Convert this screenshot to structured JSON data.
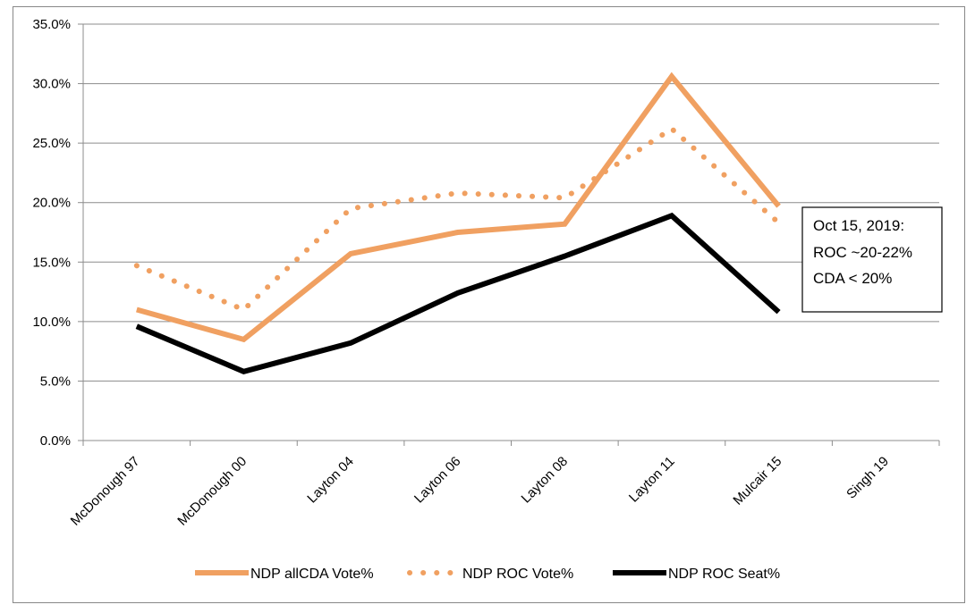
{
  "chart_data": {
    "type": "line",
    "title": "",
    "xlabel": "",
    "ylabel": "",
    "categories": [
      "McDonough 97",
      "McDonough 00",
      "Layton 04",
      "Layton 06",
      "Layton 08",
      "Layton 11",
      "Mulcair 15",
      "Singh 19"
    ],
    "ylim": [
      0,
      35
    ],
    "yticks": [
      0,
      5,
      10,
      15,
      20,
      25,
      30,
      35
    ],
    "ytick_labels": [
      "0.0%",
      "5.0%",
      "10.0%",
      "15.0%",
      "20.0%",
      "25.0%",
      "30.0%",
      "35.0%"
    ],
    "grid": "horizontal",
    "legend_position": "bottom",
    "series": [
      {
        "name": "NDP allCDA Vote%",
        "color": "#F0A061",
        "style": "solid",
        "values": [
          11.0,
          8.5,
          15.7,
          17.5,
          18.2,
          30.6,
          19.7,
          null
        ]
      },
      {
        "name": "NDP ROC Vote%",
        "color": "#F0A061",
        "style": "dotted",
        "values": [
          14.7,
          11.0,
          19.5,
          20.8,
          20.4,
          26.2,
          18.3,
          null
        ]
      },
      {
        "name": "NDP ROC Seat%",
        "color": "#000000",
        "style": "solid",
        "values": [
          9.6,
          5.8,
          8.2,
          12.4,
          15.5,
          18.9,
          10.8,
          null
        ]
      }
    ],
    "annotation": {
      "lines": [
        "Oct 15, 2019:",
        "ROC ~20-22%",
        "CDA < 20%"
      ]
    }
  }
}
